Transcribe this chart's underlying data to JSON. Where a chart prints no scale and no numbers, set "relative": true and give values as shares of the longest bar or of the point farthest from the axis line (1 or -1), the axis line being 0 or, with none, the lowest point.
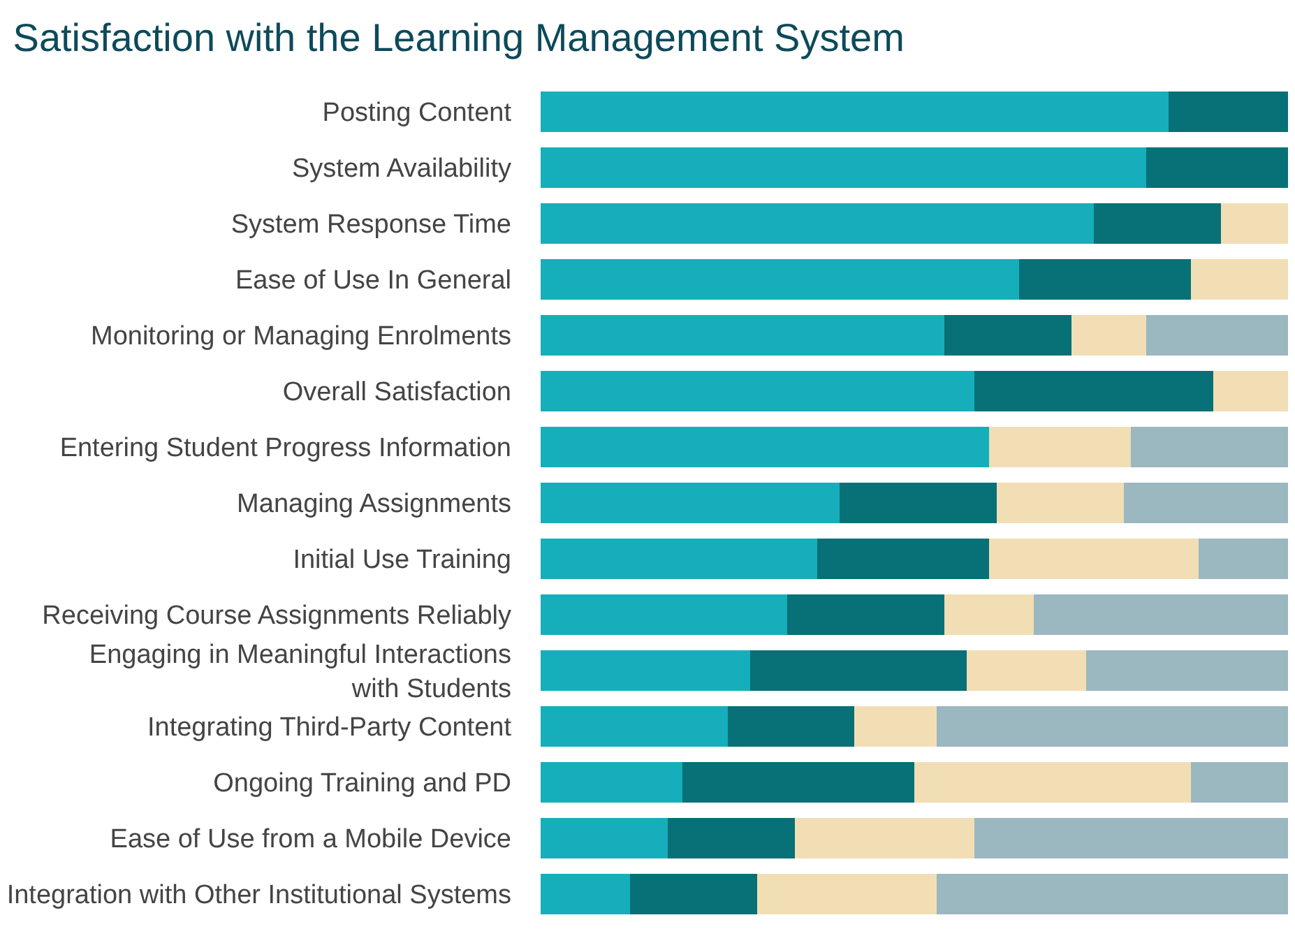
{
  "chart_data": {
    "type": "bar",
    "orientation": "horizontal",
    "stacked": true,
    "relative": true,
    "legend": false,
    "title": "Satisfaction with the Learning Management System",
    "categories": [
      "Posting Content",
      "System Availability",
      "System Response Time",
      "Ease of Use In General",
      "Monitoring or Managing Enrolments",
      "Overall Satisfaction",
      "Entering Student Progress Information",
      "Managing Assignments",
      "Initial Use Training",
      "Receiving Course Assignments Reliably",
      "Engaging in Meaningful Interactions\nwith Students",
      "Integrating Third-Party Content",
      "Ongoing Training and PD",
      "Ease of Use from a Mobile Device",
      "Integration with Other Institutional Systems"
    ],
    "series": [
      {
        "color": "#16aeba",
        "values": [
          0.84,
          0.81,
          0.74,
          0.64,
          0.54,
          0.58,
          0.6,
          0.4,
          0.37,
          0.33,
          0.28,
          0.25,
          0.19,
          0.17,
          0.12
        ]
      },
      {
        "color": "#087077",
        "values": [
          0.16,
          0.19,
          0.17,
          0.23,
          0.17,
          0.32,
          0,
          0.21,
          0.23,
          0.21,
          0.29,
          0.17,
          0.31,
          0.17,
          0.17
        ]
      },
      {
        "color": "#f2deb4",
        "values": [
          0,
          0,
          0.09,
          0.13,
          0.1,
          0.1,
          0.19,
          0.17,
          0.28,
          0.12,
          0.16,
          0.11,
          0.37,
          0.24,
          0.24
        ]
      },
      {
        "color": "#9bb7c0",
        "values": [
          0,
          0,
          0,
          0,
          0.19,
          0,
          0.21,
          0.22,
          0.12,
          0.34,
          0.27,
          0.47,
          0.13,
          0.42,
          0.47
        ]
      }
    ]
  }
}
